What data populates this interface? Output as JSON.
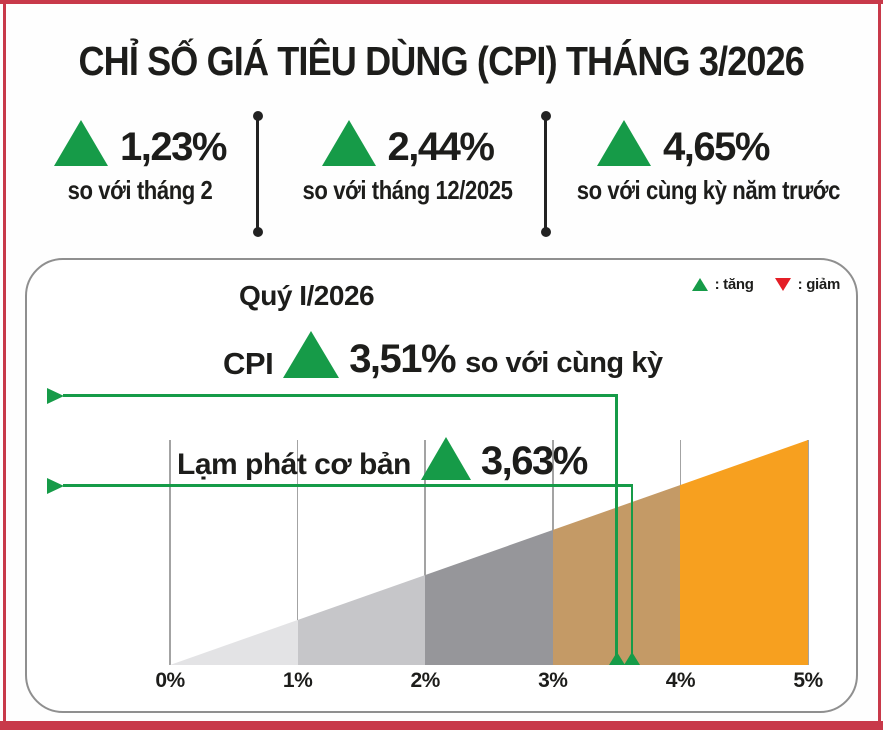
{
  "colors": {
    "green": "#169b48",
    "red": "#e41e26",
    "text": "#1d1d1b",
    "frame_red": "#c8394a",
    "gridline": "#a3a3a3",
    "panel_border": "#8f8f8f"
  },
  "header": {
    "title": "CHỈ SỐ GIÁ TIÊU DÙNG (CPI) THÁNG 3/2026"
  },
  "stats": [
    {
      "direction": "up",
      "value": "1,23%",
      "label": "so với tháng 2"
    },
    {
      "direction": "up",
      "value": "2,44%",
      "label": "so với tháng 12/2025"
    },
    {
      "direction": "up",
      "value": "4,65%",
      "label": "so với cùng kỳ năm trước"
    }
  ],
  "panel": {
    "subtitle": "Quý I/2026",
    "legend": {
      "up": ": tăng",
      "down": ": giảm"
    },
    "cpi_annotation": {
      "prefix": "CPI",
      "direction": "up",
      "value": "3,51%",
      "suffix": "so với cùng kỳ"
    },
    "core_annotation": {
      "label": "Lạm phát cơ bản",
      "direction": "up",
      "value": "3,63%"
    }
  },
  "chart_data": {
    "type": "area",
    "title": "Quý I/2026",
    "description": "Linear ramp wedge from 0% to 5%, split into five colored bands, with two green marker lines for Q1/2026 inflation readings",
    "xlim": [
      0,
      5
    ],
    "x_ticks": [
      "0%",
      "1%",
      "2%",
      "3%",
      "4%",
      "5%"
    ],
    "grid": true,
    "segments": [
      {
        "from": 0,
        "to": 1,
        "color": "#e3e3e5"
      },
      {
        "from": 1,
        "to": 2,
        "color": "#c6c6c9"
      },
      {
        "from": 2,
        "to": 3,
        "color": "#96969a"
      },
      {
        "from": 3,
        "to": 4,
        "color": "#c49a66"
      },
      {
        "from": 4,
        "to": 5,
        "color": "#f7a01f"
      }
    ],
    "markers": [
      {
        "name": "CPI so với cùng kỳ",
        "value": 3.51,
        "color": "#169b48"
      },
      {
        "name": "Lạm phát cơ bản",
        "value": 3.63,
        "color": "#169b48"
      }
    ],
    "legend": [
      {
        "symbol": "triangle-up",
        "color": "#169b48",
        "label": "tăng"
      },
      {
        "symbol": "triangle-down",
        "color": "#e41e26",
        "label": "giảm"
      }
    ],
    "legend_position": "top-right"
  }
}
